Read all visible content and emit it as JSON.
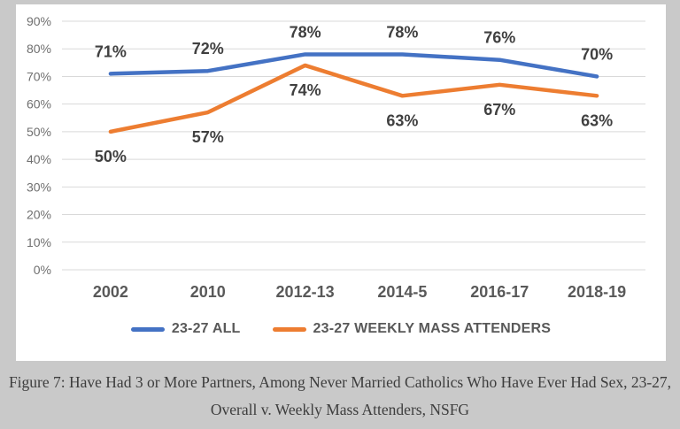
{
  "figure": {
    "caption_line1": "Figure 7: Have Had 3 or More Partners, Among Never Married Catholics Who Have Ever Had Sex, 23-27,",
    "caption_line2": "Overall v. Weekly Mass Attenders, NSFG"
  },
  "chart_data": {
    "type": "line",
    "categories": [
      "2002",
      "2010",
      "2012-13",
      "2014-5",
      "2016-17",
      "2018-19"
    ],
    "series": [
      {
        "name": "23-27 ALL",
        "color": "#4472C4",
        "values": [
          71,
          72,
          78,
          78,
          76,
          70
        ],
        "data_labels": [
          "71%",
          "72%",
          "78%",
          "78%",
          "76%",
          "70%"
        ],
        "data_label_position": "above"
      },
      {
        "name": "23-27 WEEKLY MASS ATTENDERS",
        "color": "#ED7D31",
        "values": [
          50,
          57,
          74,
          63,
          67,
          63
        ],
        "data_labels": [
          "50%",
          "57%",
          "74%",
          "63%",
          "67%",
          "63%"
        ],
        "data_label_position": "below"
      }
    ],
    "title": "",
    "xlabel": "",
    "ylabel": "",
    "ylim": [
      0,
      90
    ],
    "ytick_step": 10,
    "ytick_labels": [
      "0%",
      "10%",
      "20%",
      "30%",
      "40%",
      "50%",
      "60%",
      "70%",
      "80%",
      "90%"
    ],
    "grid": true,
    "legend_position": "bottom"
  },
  "colors": {
    "page_background": "#C9C9C9",
    "chart_background": "#FFFFFF",
    "gridline": "#D9D9D9",
    "ytick_label": "#6F6F6F",
    "category_label": "#595959",
    "data_label": "#404040",
    "legend_text": "#595959",
    "caption_text": "#3D3D3D"
  }
}
